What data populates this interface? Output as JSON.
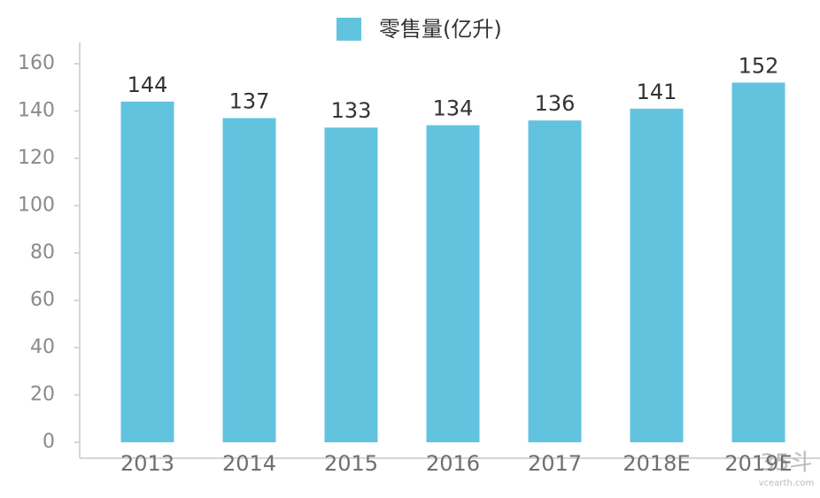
{
  "chart_data": {
    "type": "bar",
    "legend_label": "零售量(亿升)",
    "categories": [
      "2013",
      "2014",
      "2015",
      "2016",
      "2017",
      "2018E",
      "2019E"
    ],
    "values": [
      144,
      137,
      133,
      134,
      136,
      141,
      152
    ],
    "color": "#62c3df",
    "ylim": [
      0,
      160
    ],
    "yticks": [
      0,
      20,
      40,
      60,
      80,
      100,
      120,
      140,
      160
    ],
    "grid": false,
    "watermark": "35斗",
    "watermark_url": "vcearth.com"
  }
}
